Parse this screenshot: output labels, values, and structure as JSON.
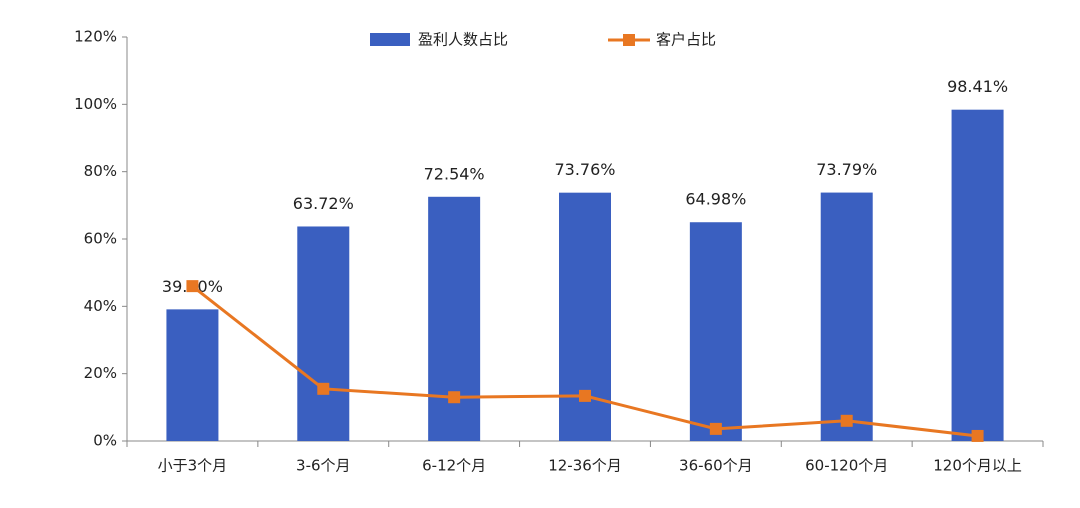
{
  "chart_data": {
    "type": "bar",
    "categories": [
      "小于3个月",
      "3-6个月",
      "6-12个月",
      "12-36个月",
      "36-60个月",
      "60-120个月",
      "120个月以上"
    ],
    "series": [
      {
        "name": "盈利人数占比",
        "type": "bar",
        "color": "#3a5fc0",
        "values": [
          39.1,
          63.72,
          72.54,
          73.76,
          64.98,
          73.79,
          98.41
        ],
        "value_labels": [
          "39.10%",
          "63.72%",
          "72.54%",
          "73.76%",
          "64.98%",
          "73.79%",
          "98.41%"
        ]
      },
      {
        "name": "客户占比",
        "type": "line",
        "color": "#e87722",
        "values": [
          46,
          15.5,
          13,
          13.4,
          3.6,
          6,
          1.5
        ]
      }
    ],
    "ylim": [
      0,
      120
    ],
    "yticks": [
      {
        "value": 0,
        "label": "0%"
      },
      {
        "value": 20,
        "label": "20%"
      },
      {
        "value": 40,
        "label": "40%"
      },
      {
        "value": 60,
        "label": "60%"
      },
      {
        "value": 80,
        "label": "80%"
      },
      {
        "value": 100,
        "label": "100%"
      },
      {
        "value": 120,
        "label": "120%"
      }
    ],
    "grid": false,
    "legend": "top"
  }
}
